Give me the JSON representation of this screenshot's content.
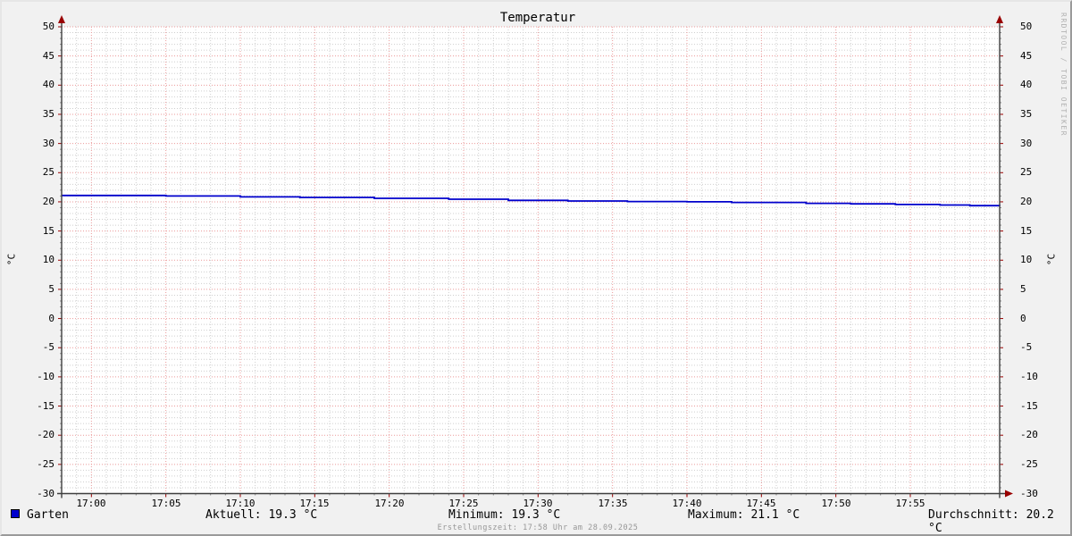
{
  "title": "Temperatur",
  "watermark": "RRDTOOL / TOBI OETIKER",
  "y_axis_unit_left": "°C",
  "y_axis_unit_right": "°C",
  "legend": {
    "series_label": "Garten",
    "current": "Aktuell: 19.3 °C",
    "minimum": "Minimum: 19.3 °C",
    "maximum": "Maximum: 21.1 °C",
    "average": "Durchschnitt: 20.2 °C"
  },
  "footer": "Erstellungszeit: 17:58 Uhr am 28.09.2025",
  "colors": {
    "background": "#f1f1f1",
    "canvas": "#ffffff",
    "major_grid": "#eb9a9a",
    "minor_grid": "#cfcfcf",
    "axis": "#3f3f3f",
    "arrow": "#990000",
    "series_line": "#0000cc",
    "legend_swatch": "#0000cc",
    "text": "#000000",
    "footer_text": "#969696",
    "watermark_text": "#b2b2b2"
  },
  "chart_data": {
    "type": "line",
    "title": "Temperatur",
    "xlabel": "",
    "ylabel": "°C",
    "ylim": [
      -30,
      50
    ],
    "y_major_step": 5,
    "y_minor_step": 1,
    "y_tick_values": [
      50,
      45,
      40,
      35,
      30,
      25,
      20,
      15,
      10,
      5,
      0,
      -5,
      -10,
      -15,
      -20,
      -25,
      -30
    ],
    "x_tick_labels": [
      "17:00",
      "17:05",
      "17:10",
      "17:15",
      "17:20",
      "17:25",
      "17:30",
      "17:35",
      "17:40",
      "17:45",
      "17:50",
      "17:55"
    ],
    "x_tick_minutes": [
      0,
      5,
      10,
      15,
      20,
      25,
      30,
      35,
      40,
      45,
      50,
      55
    ],
    "x_minor_step_minutes": 1,
    "x_range_minutes": [
      -2,
      61
    ],
    "grid": true,
    "legend_position": "bottom",
    "series": [
      {
        "name": "Garten",
        "color": "#0000cc",
        "style": "step-after",
        "points_minute_celsius": [
          [
            -2,
            21.1
          ],
          [
            5,
            21.0
          ],
          [
            10,
            20.85
          ],
          [
            14,
            20.75
          ],
          [
            19,
            20.6
          ],
          [
            24,
            20.45
          ],
          [
            28,
            20.25
          ],
          [
            32,
            20.15
          ],
          [
            36,
            20.05
          ],
          [
            40,
            20.0
          ],
          [
            43,
            19.9
          ],
          [
            48,
            19.75
          ],
          [
            51,
            19.65
          ],
          [
            54,
            19.55
          ],
          [
            57,
            19.45
          ],
          [
            59,
            19.35
          ],
          [
            61,
            19.3
          ]
        ]
      }
    ],
    "stats": {
      "current": 19.3,
      "minimum": 19.3,
      "maximum": 21.1,
      "average": 20.2,
      "unit": "°C"
    }
  }
}
